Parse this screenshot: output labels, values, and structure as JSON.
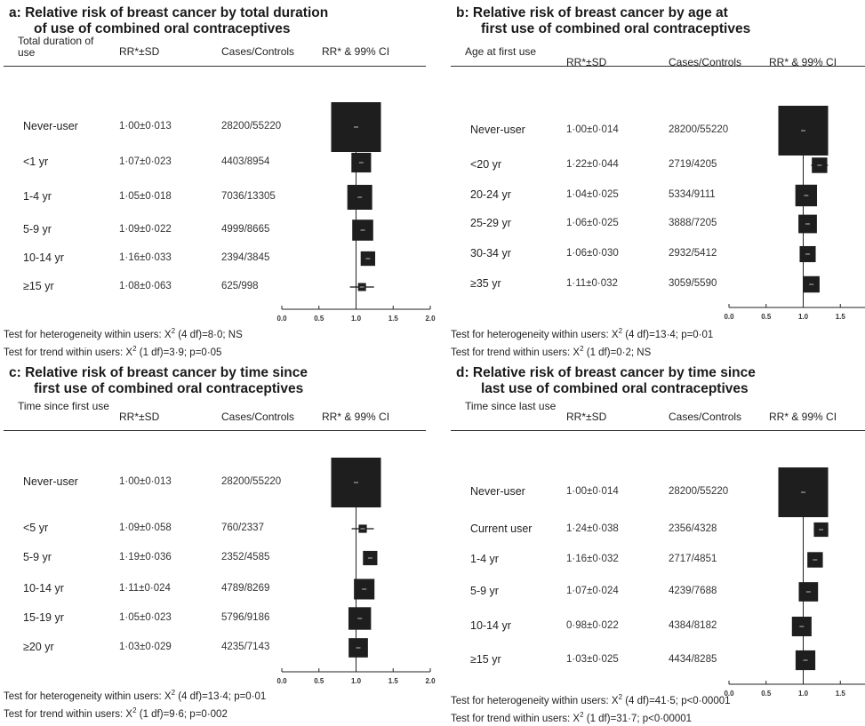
{
  "panels": [
    {
      "id": "a",
      "title_line1": "a: Relative risk of breast cancer by total duration",
      "title_line2": "of use of combined oral contraceptives",
      "header": {
        "group": "Total duration of use",
        "rr": "RR*±SD",
        "cases": "Cases/Controls",
        "ci": "RR* & 99% CI"
      },
      "tests": {
        "heterogeneity": {
          "pre": "Test for heterogeneity within users: X",
          "sup": "2",
          "post": " (4 df)=8·0; NS"
        },
        "trend": {
          "pre": "Test for trend within users: X",
          "sup": "2",
          "post": " (1 df)=3·9; p=0·05"
        }
      }
    },
    {
      "id": "b",
      "title_line1": "b: Relative risk of breast cancer by age at",
      "title_line2": "first use of combined oral contraceptives",
      "header": {
        "group": "Age at first use",
        "rr": "RR*±SD",
        "cases": "Cases/Controls",
        "ci": "RR* & 99% CI"
      },
      "tests": {
        "heterogeneity": {
          "pre": "Test for heterogeneity within users: X",
          "sup": "2",
          "post": " (4 df)=13·4; p=0·01"
        },
        "trend": {
          "pre": "Test for trend within users: X",
          "sup": "2",
          "post": " (1 df)=0·2; NS"
        }
      }
    },
    {
      "id": "c",
      "title_line1": "c: Relative risk of breast cancer by time since",
      "title_line2": "first use of combined oral contraceptives",
      "header": {
        "group": "Time since first use",
        "rr": "RR*±SD",
        "cases": "Cases/Controls",
        "ci": "RR* & 99% CI"
      },
      "tests": {
        "heterogeneity": {
          "pre": "Test for heterogeneity within users: X",
          "sup": "2",
          "post": " (4 df)=13·4; p=0·01"
        },
        "trend": {
          "pre": "Test for trend within users: X",
          "sup": "2",
          "post": " (1 df)=9·6; p=0·002"
        }
      }
    },
    {
      "id": "d",
      "title_line1": "d: Relative risk of breast cancer by time since",
      "title_line2": "last use of combined oral contraceptives",
      "header": {
        "group": "Time since last use",
        "rr": "RR*±SD",
        "cases": "Cases/Controls",
        "ci": "RR* & 99% CI"
      },
      "tests": {
        "heterogeneity": {
          "pre": "Test for heterogeneity within users: X",
          "sup": "2",
          "post": " (4 df)=41·5; p<0·00001"
        },
        "trend": {
          "pre": "Test for trend within users: X",
          "sup": "2",
          "post": " (1 df)=31·7; p<0·00001"
        }
      }
    }
  ],
  "chart_data": [
    {
      "type": "forest",
      "panel": "a",
      "title": "a: Relative risk of breast cancer by total duration of use of combined oral contraceptives",
      "xlim": [
        0.0,
        2.0
      ],
      "xticks": [
        "0.0",
        "0.5",
        "1.0",
        "1.5",
        "2.0"
      ],
      "reference_line": 1.0,
      "rows": [
        {
          "label": "Never-user",
          "rr": 1.0,
          "sd": 0.013,
          "rr_text": "1·00±0·013",
          "cases": "28200/55220"
        },
        {
          "label": "<1 yr",
          "rr": 1.07,
          "sd": 0.023,
          "rr_text": "1·07±0·023",
          "cases": "4403/8954"
        },
        {
          "label": "1-4 yr",
          "rr": 1.05,
          "sd": 0.018,
          "rr_text": "1·05±0·018",
          "cases": "7036/13305"
        },
        {
          "label": "5-9 yr",
          "rr": 1.09,
          "sd": 0.022,
          "rr_text": "1·09±0·022",
          "cases": "4999/8665"
        },
        {
          "label": "10-14 yr",
          "rr": 1.16,
          "sd": 0.033,
          "rr_text": "1·16±0·033",
          "cases": "2394/3845"
        },
        {
          "label": "≥15 yr",
          "rr": 1.08,
          "sd": 0.063,
          "rr_text": "1·08±0·063",
          "cases": "625/998"
        }
      ]
    },
    {
      "type": "forest",
      "panel": "b",
      "title": "b: Relative risk of breast cancer by age at first use of combined oral contraceptives",
      "xlim": [
        0.0,
        2.0
      ],
      "xticks": [
        "0.0",
        "0.5",
        "1.0",
        "1.5",
        "2.0"
      ],
      "reference_line": 1.0,
      "rows": [
        {
          "label": "Never-user",
          "rr": 1.0,
          "sd": 0.014,
          "rr_text": "1·00±0·014",
          "cases": "28200/55220"
        },
        {
          "label": "<20 yr",
          "rr": 1.22,
          "sd": 0.044,
          "rr_text": "1·22±0·044",
          "cases": "2719/4205"
        },
        {
          "label": "20-24 yr",
          "rr": 1.04,
          "sd": 0.025,
          "rr_text": "1·04±0·025",
          "cases": "5334/9111"
        },
        {
          "label": "25-29 yr",
          "rr": 1.06,
          "sd": 0.025,
          "rr_text": "1·06±0·025",
          "cases": "3888/7205"
        },
        {
          "label": "30-34 yr",
          "rr": 1.06,
          "sd": 0.03,
          "rr_text": "1·06±0·030",
          "cases": "2932/5412"
        },
        {
          "label": "≥35 yr",
          "rr": 1.11,
          "sd": 0.032,
          "rr_text": "1·11±0·032",
          "cases": "3059/5590"
        }
      ]
    },
    {
      "type": "forest",
      "panel": "c",
      "title": "c: Relative risk of breast cancer by time since first use of combined oral contraceptives",
      "xlim": [
        0.0,
        2.0
      ],
      "xticks": [
        "0.0",
        "0.5",
        "1.0",
        "1.5",
        "2.0"
      ],
      "reference_line": 1.0,
      "rows": [
        {
          "label": "Never-user",
          "rr": 1.0,
          "sd": 0.013,
          "rr_text": "1·00±0·013",
          "cases": "28200/55220"
        },
        {
          "label": "<5 yr",
          "rr": 1.09,
          "sd": 0.058,
          "rr_text": "1·09±0·058",
          "cases": "760/2337"
        },
        {
          "label": "5-9 yr",
          "rr": 1.19,
          "sd": 0.036,
          "rr_text": "1·19±0·036",
          "cases": "2352/4585"
        },
        {
          "label": "10-14 yr",
          "rr": 1.11,
          "sd": 0.024,
          "rr_text": "1·11±0·024",
          "cases": "4789/8269"
        },
        {
          "label": "15-19 yr",
          "rr": 1.05,
          "sd": 0.023,
          "rr_text": "1·05±0·023",
          "cases": "5796/9186"
        },
        {
          "label": "≥20 yr",
          "rr": 1.03,
          "sd": 0.029,
          "rr_text": "1·03±0·029",
          "cases": "4235/7143"
        }
      ]
    },
    {
      "type": "forest",
      "panel": "d",
      "title": "d: Relative risk of breast cancer by time since last use of combined oral contraceptives",
      "xlim": [
        0.0,
        2.0
      ],
      "xticks": [
        "0.0",
        "0.5",
        "1.0",
        "1.5",
        "2.0"
      ],
      "reference_line": 1.0,
      "rows": [
        {
          "label": "Never-user",
          "rr": 1.0,
          "sd": 0.014,
          "rr_text": "1·00±0·014",
          "cases": "28200/55220"
        },
        {
          "label": "Current user",
          "rr": 1.24,
          "sd": 0.038,
          "rr_text": "1·24±0·038",
          "cases": "2356/4328"
        },
        {
          "label": "1-4 yr",
          "rr": 1.16,
          "sd": 0.032,
          "rr_text": "1·16±0·032",
          "cases": "2717/4851"
        },
        {
          "label": "5-9 yr",
          "rr": 1.07,
          "sd": 0.024,
          "rr_text": "1·07±0·024",
          "cases": "4239/7688"
        },
        {
          "label": "10-14 yr",
          "rr": 0.98,
          "sd": 0.022,
          "rr_text": "0·98±0·022",
          "cases": "4384/8182"
        },
        {
          "label": "≥15 yr",
          "rr": 1.03,
          "sd": 0.025,
          "rr_text": "1·03±0·025",
          "cases": "4434/8285"
        }
      ]
    }
  ]
}
